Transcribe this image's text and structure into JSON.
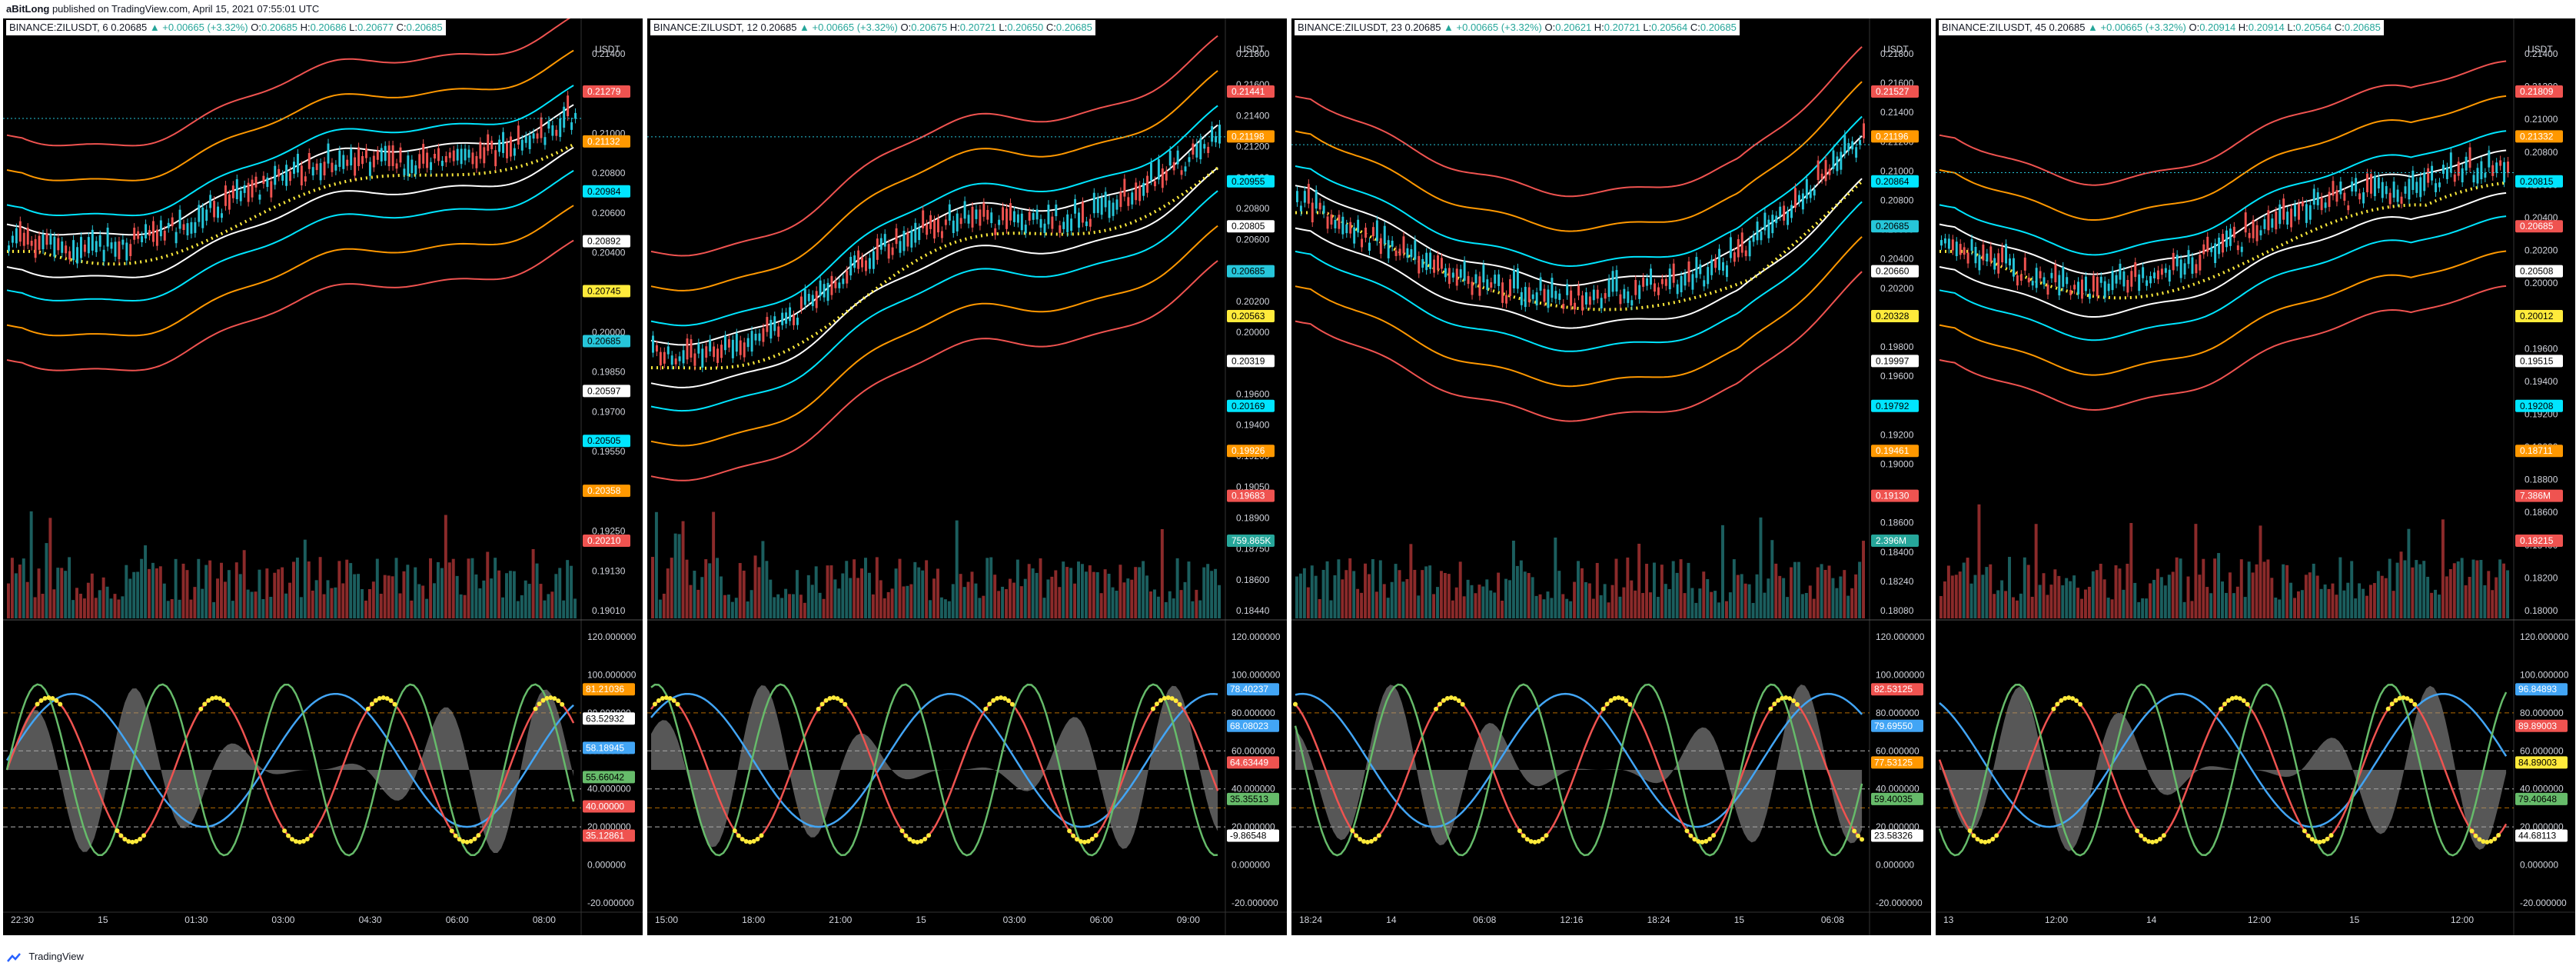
{
  "header": {
    "author": "aBitLong",
    "publish_text": "published on TradingView.com, April 15, 2021 07:55:01 UTC"
  },
  "footer": {
    "brand": "TradingView"
  },
  "colors": {
    "background": "#000000",
    "up_candle": "#26c6da",
    "down_candle": "#ef5350",
    "vol_up": "#1b5e5e",
    "vol_down": "#8b2a2a",
    "band_red": "#ef5350",
    "band_orange": "#ff9800",
    "band_cyan": "#00e5ff",
    "band_white": "#ffffff",
    "dots_yellow": "#ffeb3b",
    "osc_green": "#66bb6a",
    "osc_red": "#ef5350",
    "osc_blue": "#42a5f5",
    "osc_gray": "#9e9e9e"
  },
  "panels": [
    {
      "symbol": "BINANCE:ZILUSDT, 6",
      "price": "0.20685",
      "change": "+0.00665 (+3.32%)",
      "o_label": "O:",
      "o": "0.20685",
      "h_label": "H:",
      "h": "0.20686",
      "l_label": "L:",
      "l": "0.20677",
      "c_label": "C:",
      "c": "0.20685",
      "currency": "USDT",
      "price_ticks": [
        "0.21400",
        "0.21200",
        "0.21000",
        "0.20800",
        "0.20600",
        "0.20400",
        "0.20200",
        "0.20000",
        "0.19850",
        "0.19700",
        "0.19550",
        "0.19400",
        "0.19250",
        "0.19130",
        "0.19010"
      ],
      "price_badges": [
        {
          "text": "0.21279",
          "color": "#ef5350"
        },
        {
          "text": "0.21132",
          "color": "#ff9800"
        },
        {
          "text": "0.20984",
          "color": "#00e5ff"
        },
        {
          "text": "0.20892",
          "color": "#ffffff"
        },
        {
          "text": "0.20745",
          "color": "#ffeb3b"
        },
        {
          "text": "0.20685",
          "color": "#26c6da"
        },
        {
          "text": "0.20597",
          "color": "#ffffff"
        },
        {
          "text": "0.20505",
          "color": "#00e5ff"
        },
        {
          "text": "0.20358",
          "color": "#ff9800"
        },
        {
          "text": "0.20210",
          "color": "#ef5350"
        }
      ],
      "osc_ticks": [
        "120.000000",
        "100.000000",
        "80.000000",
        "60.000000",
        "40.000000",
        "20.000000",
        "0.000000",
        "-20.000000"
      ],
      "osc_badges": [
        {
          "text": "81.21036",
          "color": "#ff9800"
        },
        {
          "text": "63.52932",
          "color": "#ffffff"
        },
        {
          "text": "58.18945",
          "color": "#42a5f5"
        },
        {
          "text": "55.66042",
          "color": "#66bb6a"
        },
        {
          "text": "40.00000",
          "color": "#ef5350"
        },
        {
          "text": "35.12861",
          "color": "#ef5350"
        }
      ],
      "time_labels": [
        "22:30",
        "15",
        "01:30",
        "03:00",
        "04:30",
        "06:00",
        "08:00"
      ]
    },
    {
      "symbol": "BINANCE:ZILUSDT, 12",
      "price": "0.20685",
      "change": "+0.00665 (+3.32%)",
      "o_label": "O:",
      "o": "0.20675",
      "h_label": "H:",
      "h": "0.20721",
      "l_label": "L:",
      "l": "0.20650",
      "c_label": "C:",
      "c": "0.20685",
      "currency": "USDT",
      "price_ticks": [
        "0.21800",
        "0.21600",
        "0.21400",
        "0.21200",
        "0.21000",
        "0.20800",
        "0.20600",
        "0.20400",
        "0.20200",
        "0.20000",
        "0.19800",
        "0.19600",
        "0.19400",
        "0.19200",
        "0.19050",
        "0.18900",
        "0.18750",
        "0.18600",
        "0.18440"
      ],
      "price_badges": [
        {
          "text": "0.21441",
          "color": "#ef5350"
        },
        {
          "text": "0.21198",
          "color": "#ff9800"
        },
        {
          "text": "0.20955",
          "color": "#00e5ff"
        },
        {
          "text": "0.20805",
          "color": "#ffffff"
        },
        {
          "text": "0.20685",
          "color": "#26c6da"
        },
        {
          "text": "0.20563",
          "color": "#ffeb3b"
        },
        {
          "text": "0.20319",
          "color": "#ffffff"
        },
        {
          "text": "0.20169",
          "color": "#00e5ff"
        },
        {
          "text": "0.19926",
          "color": "#ff9800"
        },
        {
          "text": "0.19683",
          "color": "#ef5350"
        },
        {
          "text": "759.865K",
          "color": "#26a69a"
        }
      ],
      "osc_ticks": [
        "120.000000",
        "100.000000",
        "80.000000",
        "60.000000",
        "40.000000",
        "20.000000",
        "0.000000",
        "-20.000000"
      ],
      "osc_badges": [
        {
          "text": "78.40237",
          "color": "#42a5f5"
        },
        {
          "text": "68.08023",
          "color": "#42a5f5"
        },
        {
          "text": "64.63449",
          "color": "#ef5350"
        },
        {
          "text": "35.35513",
          "color": "#66bb6a"
        },
        {
          "text": "-9.86548",
          "color": "#ffffff"
        }
      ],
      "time_labels": [
        "15:00",
        "18:00",
        "21:00",
        "15",
        "03:00",
        "06:00",
        "09:00"
      ]
    },
    {
      "symbol": "BINANCE:ZILUSDT, 23",
      "price": "0.20685",
      "change": "+0.00665 (+3.32%)",
      "o_label": "O:",
      "o": "0.20621",
      "h_label": "H:",
      "h": "0.20721",
      "l_label": "L:",
      "l": "0.20564",
      "c_label": "C:",
      "c": "0.20685",
      "currency": "USDT",
      "price_ticks": [
        "0.21800",
        "0.21600",
        "0.21400",
        "0.21200",
        "0.21000",
        "0.20800",
        "0.20600",
        "0.20400",
        "0.20200",
        "0.20000",
        "0.19800",
        "0.19600",
        "0.19400",
        "0.19200",
        "0.19000",
        "0.18800",
        "0.18600",
        "0.18400",
        "0.18240",
        "0.18080"
      ],
      "price_badges": [
        {
          "text": "0.21527",
          "color": "#ef5350"
        },
        {
          "text": "0.21196",
          "color": "#ff9800"
        },
        {
          "text": "0.20864",
          "color": "#00e5ff"
        },
        {
          "text": "0.20685",
          "color": "#26c6da"
        },
        {
          "text": "0.20660",
          "color": "#ffffff"
        },
        {
          "text": "0.20328",
          "color": "#ffeb3b"
        },
        {
          "text": "0.19997",
          "color": "#ffffff"
        },
        {
          "text": "0.19792",
          "color": "#00e5ff"
        },
        {
          "text": "0.19461",
          "color": "#ff9800"
        },
        {
          "text": "0.19130",
          "color": "#ef5350"
        },
        {
          "text": "2.396M",
          "color": "#26a69a"
        }
      ],
      "osc_ticks": [
        "120.000000",
        "100.000000",
        "80.000000",
        "60.000000",
        "40.000000",
        "20.000000",
        "0.000000",
        "-20.000000"
      ],
      "osc_badges": [
        {
          "text": "82.53125",
          "color": "#ef5350"
        },
        {
          "text": "79.69550",
          "color": "#42a5f5"
        },
        {
          "text": "77.53125",
          "color": "#ff9800"
        },
        {
          "text": "59.40035",
          "color": "#66bb6a"
        },
        {
          "text": "23.58326",
          "color": "#ffffff"
        }
      ],
      "time_labels": [
        "18:24",
        "14",
        "06:08",
        "12:16",
        "18:24",
        "15",
        "06:08"
      ]
    },
    {
      "symbol": "BINANCE:ZILUSDT, 45",
      "price": "0.20685",
      "change": "+0.00665 (+3.32%)",
      "o_label": "O:",
      "o": "0.20914",
      "h_label": "H:",
      "h": "0.20914",
      "l_label": "L:",
      "l": "0.20564",
      "c_label": "C:",
      "c": "0.20685",
      "currency": "USDT",
      "price_ticks": [
        "0.21400",
        "0.21200",
        "0.21000",
        "0.20800",
        "0.20600",
        "0.20400",
        "0.20200",
        "0.20000",
        "0.19800",
        "0.19600",
        "0.19400",
        "0.19200",
        "0.19000",
        "0.18800",
        "0.18600",
        "0.18400",
        "0.18200",
        "0.18000"
      ],
      "price_badges": [
        {
          "text": "0.21809",
          "color": "#ef5350"
        },
        {
          "text": "0.21332",
          "color": "#ff9800"
        },
        {
          "text": "0.20815",
          "color": "#00e5ff"
        },
        {
          "text": "0.20685",
          "color": "#ef5350"
        },
        {
          "text": "0.20508",
          "color": "#ffffff"
        },
        {
          "text": "0.20012",
          "color": "#ffeb3b"
        },
        {
          "text": "0.19515",
          "color": "#ffffff"
        },
        {
          "text": "0.19208",
          "color": "#00e5ff"
        },
        {
          "text": "0.18711",
          "color": "#ff9800"
        },
        {
          "text": "7.386M",
          "color": "#ef5350"
        },
        {
          "text": "0.18215",
          "color": "#ef5350"
        }
      ],
      "osc_ticks": [
        "120.000000",
        "100.000000",
        "80.000000",
        "60.000000",
        "40.000000",
        "20.000000",
        "0.000000",
        "-20.000000"
      ],
      "osc_badges": [
        {
          "text": "96.84893",
          "color": "#42a5f5"
        },
        {
          "text": "89.89003",
          "color": "#ef5350"
        },
        {
          "text": "84.89003",
          "color": "#ffeb3b"
        },
        {
          "text": "79.40648",
          "color": "#66bb6a"
        },
        {
          "text": "44.68113",
          "color": "#ffffff"
        }
      ],
      "time_labels": [
        "13",
        "12:00",
        "14",
        "12:00",
        "15",
        "12:00"
      ]
    }
  ]
}
